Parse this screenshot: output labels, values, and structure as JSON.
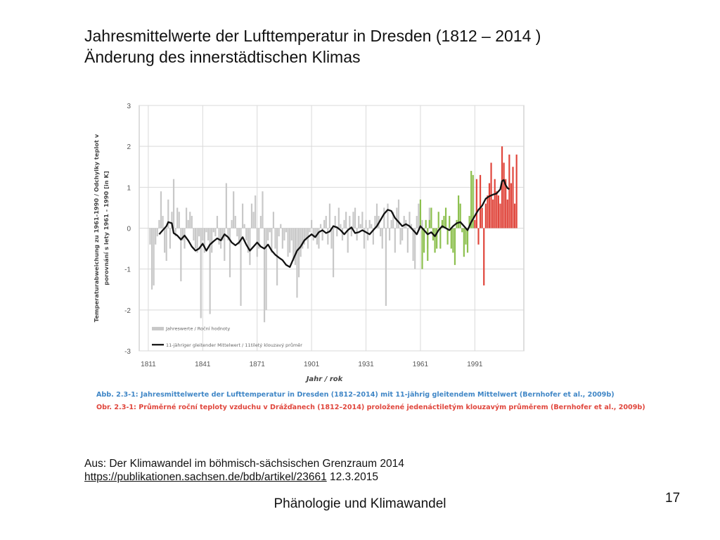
{
  "slide": {
    "title_line1": "Jahresmittelwerte der Lufttemperatur in Dresden (1812 – 2014 )",
    "title_line2": "Änderung des innerstädtischen Klimas",
    "caption_de": "Abb. 2.3-1: Jahresmittelwerte der Lufttemperatur in Dresden (1812–2014) mit 11-jährig gleitendem Mittelwert (Bernhofer et al., 2009b)",
    "caption_cz": "Obr. 2.3-1: Průměrné roční teploty vzduchu v Drážďanech (1812–2014) proložené jedenáctiletým klouzavým průměrem (Bernhofer et al., 2009b)",
    "source_label": "Aus: Der Klimawandel im böhmisch-sächsischen Grenzraum 2014",
    "source_link": "https://publikationen.sachsen.de/bdb/artikel/23661",
    "source_date": "12.3.2015",
    "footer": "Phänologie und Klimawandel",
    "page_number": "17"
  },
  "colors": {
    "bars_gray": "#c8c8c8",
    "bars_green": "#8dc04f",
    "bars_red": "#e0463c",
    "mean_line": "#111111",
    "caption_blue": "#3f86c6",
    "caption_red": "#e0463c"
  },
  "chart_data": {
    "type": "bar",
    "xlabel": "Jahr / rok",
    "ylabel_line1": "Temperaturabweichung zu 1961-1990 / Odchylky teplot v",
    "ylabel_line2": "porovnání s lety 1961 - 1990 [in K]",
    "xlim": [
      1806,
      2018
    ],
    "ylim": [
      -3,
      3
    ],
    "x_ticks": [
      1811,
      1841,
      1871,
      1901,
      1931,
      1961,
      1991
    ],
    "y_ticks": [
      -3,
      -2,
      -1,
      0,
      1,
      2,
      3
    ],
    "grid": true,
    "legend_position": "bottom-left",
    "legend": [
      "Jahreswerte / Roční hodnoty",
      "11-jähriger gleitender Mittelwert / 11tiletý klouzavý průměr"
    ],
    "series": [
      {
        "name": "Jahreswerte / Roční hodnoty",
        "kind": "bars",
        "start_year": 1812,
        "values": [
          -0.4,
          -1.5,
          -1.4,
          -0.4,
          -0.2,
          0.2,
          0.9,
          0.3,
          -0.6,
          -0.8,
          0.7,
          -0.5,
          0.4,
          1.2,
          -0.2,
          0.5,
          0.4,
          -1.3,
          -0.3,
          -0.5,
          0.5,
          0.2,
          0.4,
          0.3,
          -0.3,
          -0.5,
          -0.6,
          -0.2,
          -2.2,
          -0.3,
          -0.6,
          -0.1,
          -0.3,
          -2.1,
          -0.6,
          -0.1,
          -0.2,
          0.3,
          -0.4,
          -0.5,
          -0.3,
          -0.8,
          1.1,
          -0.3,
          -1.2,
          0.2,
          0.9,
          0.3,
          -0.2,
          -0.4,
          -1.9,
          0.6,
          0.1,
          -0.3,
          -0.6,
          -0.9,
          0.6,
          0.4,
          0.8,
          -0.7,
          -0.5,
          0.3,
          0.9,
          -2.3,
          -2.0,
          -0.3,
          -0.1,
          -0.6,
          0.4,
          -0.5,
          -1.4,
          -0.2,
          0.1,
          -0.5,
          -0.3,
          -0.1,
          -0.7,
          -0.6,
          -0.3,
          -0.8,
          -0.9,
          -1.7,
          -1.2,
          -0.7,
          -0.5,
          -0.4,
          -0.3,
          -0.5,
          -0.1,
          0.2,
          -0.3,
          -0.2,
          -0.4,
          -0.5,
          0.1,
          -0.3,
          0.2,
          0.3,
          -0.4,
          0.6,
          -0.5,
          -1.2,
          0.3,
          -0.2,
          0.5,
          0.1,
          -0.3,
          0.2,
          0.4,
          -0.6,
          0.3,
          -0.2,
          0.4,
          0.5,
          -0.3,
          0.3,
          0.1,
          0.4,
          -0.5,
          0.2,
          -0.3,
          0.2,
          0.1,
          -0.4,
          0.3,
          0.6,
          0.3,
          -0.2,
          -0.5,
          0.5,
          -1.9,
          0.6,
          -0.3,
          0.2,
          0.4,
          -0.6,
          0.5,
          0.7,
          -0.4,
          -0.3,
          0.3,
          0.2,
          -0.6,
          0.4,
          0.1,
          -0.8,
          -1.0,
          0.3,
          0.6,
          0.4,
          0.2,
          -0.3,
          0.1,
          -0.5,
          0.5
        ]
      },
      {
        "name": "Jahreswerte / Roční hodnoty (1961–1990)",
        "kind": "bars",
        "start_year": 1961,
        "values": [
          0.7,
          -1.0,
          -0.6,
          0.2,
          -0.8,
          0.2,
          0.5,
          -0.3,
          -0.6,
          -0.5,
          0.4,
          -0.5,
          0.2,
          0.3,
          0.5,
          -0.4,
          0.3,
          -0.5,
          -0.6,
          -0.9,
          0.2,
          0.8,
          0.6,
          -0.1,
          -0.7,
          -0.4,
          -0.6,
          0.3,
          1.4,
          1.3
        ]
      },
      {
        "name": "Jahreswerte / Roční hodnoty (1991–2014)",
        "kind": "bars",
        "start_year": 1991,
        "values": [
          0.2,
          1.2,
          -0.4,
          1.3,
          0.5,
          -1.4,
          0.6,
          0.8,
          1.1,
          1.6,
          0.7,
          1.2,
          0.9,
          0.8,
          0.6,
          2.0,
          1.6,
          1.2,
          0.7,
          1.8,
          1.1,
          1.5,
          0.6,
          1.8
        ]
      },
      {
        "name": "11-jähriger gleitender Mittelwert / 11tiletý klouzavý průměr",
        "kind": "line",
        "points": [
          [
            1817,
            -0.15
          ],
          [
            1819,
            -0.05
          ],
          [
            1821,
            0.05
          ],
          [
            1822,
            0.15
          ],
          [
            1824,
            0.12
          ],
          [
            1825,
            -0.12
          ],
          [
            1827,
            -0.18
          ],
          [
            1829,
            -0.28
          ],
          [
            1831,
            -0.18
          ],
          [
            1833,
            -0.3
          ],
          [
            1835,
            -0.45
          ],
          [
            1837,
            -0.55
          ],
          [
            1839,
            -0.5
          ],
          [
            1841,
            -0.38
          ],
          [
            1843,
            -0.55
          ],
          [
            1845,
            -0.4
          ],
          [
            1847,
            -0.32
          ],
          [
            1849,
            -0.25
          ],
          [
            1851,
            -0.3
          ],
          [
            1853,
            -0.15
          ],
          [
            1855,
            -0.22
          ],
          [
            1857,
            -0.35
          ],
          [
            1859,
            -0.42
          ],
          [
            1861,
            -0.35
          ],
          [
            1863,
            -0.22
          ],
          [
            1865,
            -0.4
          ],
          [
            1867,
            -0.55
          ],
          [
            1869,
            -0.45
          ],
          [
            1871,
            -0.35
          ],
          [
            1873,
            -0.45
          ],
          [
            1875,
            -0.5
          ],
          [
            1877,
            -0.4
          ],
          [
            1879,
            -0.55
          ],
          [
            1881,
            -0.65
          ],
          [
            1883,
            -0.72
          ],
          [
            1885,
            -0.78
          ],
          [
            1887,
            -0.9
          ],
          [
            1889,
            -0.95
          ],
          [
            1891,
            -0.75
          ],
          [
            1893,
            -0.55
          ],
          [
            1895,
            -0.45
          ],
          [
            1897,
            -0.3
          ],
          [
            1899,
            -0.22
          ],
          [
            1901,
            -0.15
          ],
          [
            1903,
            -0.22
          ],
          [
            1905,
            -0.1
          ],
          [
            1907,
            -0.05
          ],
          [
            1909,
            -0.12
          ],
          [
            1911,
            -0.08
          ],
          [
            1913,
            0.05
          ],
          [
            1915,
            0.02
          ],
          [
            1917,
            -0.05
          ],
          [
            1919,
            -0.15
          ],
          [
            1921,
            -0.05
          ],
          [
            1923,
            0.02
          ],
          [
            1925,
            -0.12
          ],
          [
            1927,
            -0.1
          ],
          [
            1929,
            -0.05
          ],
          [
            1931,
            -0.1
          ],
          [
            1933,
            -0.15
          ],
          [
            1935,
            -0.05
          ],
          [
            1937,
            0.05
          ],
          [
            1939,
            0.2
          ],
          [
            1941,
            0.35
          ],
          [
            1943,
            0.45
          ],
          [
            1945,
            0.42
          ],
          [
            1947,
            0.25
          ],
          [
            1949,
            0.15
          ],
          [
            1951,
            0.05
          ],
          [
            1953,
            0.1
          ],
          [
            1955,
            0.05
          ],
          [
            1957,
            -0.05
          ],
          [
            1959,
            -0.15
          ],
          [
            1961,
            0.05
          ],
          [
            1963,
            -0.05
          ],
          [
            1965,
            -0.15
          ],
          [
            1967,
            -0.1
          ],
          [
            1969,
            -0.2
          ],
          [
            1971,
            -0.05
          ],
          [
            1973,
            0.05
          ],
          [
            1975,
            0.0
          ],
          [
            1977,
            -0.05
          ],
          [
            1979,
            0.05
          ],
          [
            1981,
            0.12
          ],
          [
            1983,
            0.15
          ],
          [
            1985,
            0.05
          ],
          [
            1987,
            -0.05
          ],
          [
            1989,
            0.15
          ],
          [
            1991,
            0.3
          ],
          [
            1993,
            0.45
          ],
          [
            1995,
            0.55
          ],
          [
            1997,
            0.72
          ],
          [
            1999,
            0.78
          ],
          [
            2001,
            0.82
          ],
          [
            2003,
            0.85
          ],
          [
            2005,
            0.95
          ],
          [
            2006,
            1.15
          ],
          [
            2007,
            1.18
          ],
          [
            2008,
            1.05
          ],
          [
            2009,
            0.98
          ],
          [
            2010,
            0.95
          ]
        ]
      }
    ]
  }
}
